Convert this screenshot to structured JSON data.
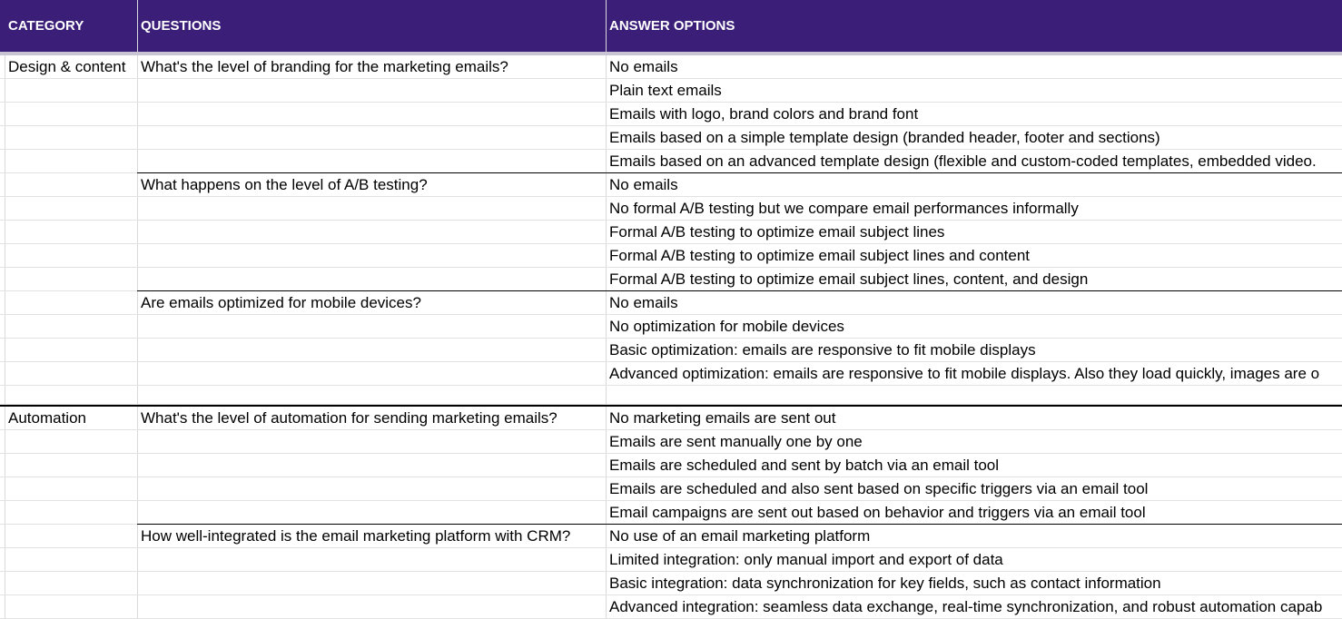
{
  "header": {
    "category": "CATEGORY",
    "questions": "QUESTIONS",
    "answer_options": "ANSWER OPTIONS"
  },
  "rows": [
    {
      "category": "Design & content",
      "question": "What's the level of branding for the marketing emails?",
      "answer": "No emails"
    },
    {
      "category": "",
      "question": "",
      "answer": "Plain text emails"
    },
    {
      "category": "",
      "question": "",
      "answer": "Emails with logo, brand colors and brand font"
    },
    {
      "category": "",
      "question": "",
      "answer": "Emails based on a simple template design (branded header, footer and sections)"
    },
    {
      "category": "",
      "question": "",
      "answer": "Emails based on an advanced template design (flexible and custom-coded templates, embedded video."
    },
    {
      "category": "",
      "question": "What happens on the level of A/B testing?",
      "answer": "No emails"
    },
    {
      "category": "",
      "question": "",
      "answer": "No formal A/B testing but we compare email performances informally"
    },
    {
      "category": "",
      "question": "",
      "answer": "Formal A/B testing to optimize email subject lines"
    },
    {
      "category": "",
      "question": "",
      "answer": "Formal A/B testing to optimize email subject lines and content"
    },
    {
      "category": "",
      "question": "",
      "answer": "Formal A/B testing to optimize email subject lines, content, and design"
    },
    {
      "category": "",
      "question": "Are emails optimized for mobile devices?",
      "answer": "No emails"
    },
    {
      "category": "",
      "question": "",
      "answer": "No optimization for mobile devices"
    },
    {
      "category": "",
      "question": "",
      "answer": "Basic optimization: emails are responsive to fit mobile displays"
    },
    {
      "category": "",
      "question": "",
      "answer": "Advanced optimization: emails are responsive to fit mobile displays. Also they load quickly, images are o"
    },
    {
      "category": "",
      "question": "",
      "answer": ""
    },
    {
      "category": "Automation",
      "question": "What's the level of automation for sending marketing emails?",
      "answer": "No marketing emails are sent out"
    },
    {
      "category": "",
      "question": "",
      "answer": "Emails are sent manually one by one"
    },
    {
      "category": "",
      "question": "",
      "answer": "Emails are scheduled and sent by batch via an email tool"
    },
    {
      "category": "",
      "question": "",
      "answer": "Emails are scheduled and also sent based on specific triggers via an email tool"
    },
    {
      "category": "",
      "question": "",
      "answer": "Email campaigns are sent out based on behavior and triggers via an email tool"
    },
    {
      "category": "",
      "question": "How well-integrated is the email marketing platform with CRM?",
      "answer": "No use of an email marketing platform"
    },
    {
      "category": "",
      "question": "",
      "answer": "Limited integration: only manual import and export of data"
    },
    {
      "category": "",
      "question": "",
      "answer": "Basic integration: data synchronization for key fields, such as contact information"
    },
    {
      "category": "",
      "question": "",
      "answer": "Advanced integration: seamless data exchange, real-time synchronization, and robust automation capab"
    }
  ]
}
